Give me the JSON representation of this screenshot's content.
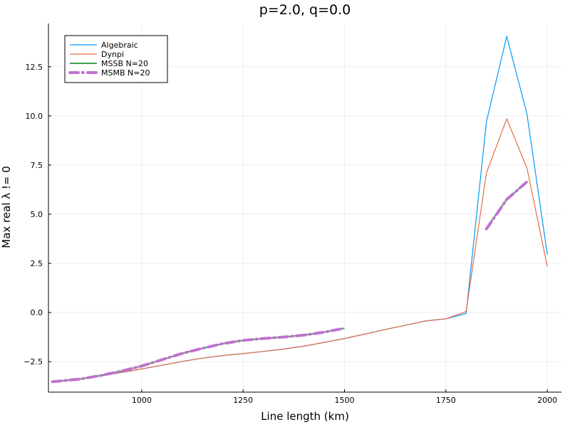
{
  "chart_data": {
    "type": "line",
    "title": "p=2.0, q=0.0",
    "xlabel": "Line length (km)",
    "ylabel": "Max real λ != 0",
    "xlim": [
      770,
      2035
    ],
    "ylim": [
      -4.05,
      14.7
    ],
    "xticks": [
      1000,
      1250,
      1500,
      1750,
      2000
    ],
    "xtick_labels": [
      "1000",
      "1250",
      "1500",
      "1750",
      "2000"
    ],
    "yticks": [
      -2.5,
      0.0,
      2.5,
      5.0,
      7.5,
      10.0,
      12.5
    ],
    "ytick_labels": [
      "−2.5",
      "0.0",
      "2.5",
      "5.0",
      "7.5",
      "10.0",
      "12.5"
    ],
    "grid": true,
    "legend_position": "top-left",
    "series": [
      {
        "name": "Algebraic",
        "color": "#009AFA",
        "style": "solid",
        "width": 1.2,
        "x": [
          780,
          850,
          900,
          950,
          1000,
          1050,
          1100,
          1150,
          1200,
          1250,
          1300,
          1350,
          1400,
          1450,
          1500,
          1550,
          1600,
          1650,
          1700,
          1750,
          1800,
          1850,
          1900,
          1950,
          2000
        ],
        "y": [
          -3.5,
          -3.37,
          -3.22,
          -3.05,
          -2.87,
          -2.68,
          -2.49,
          -2.32,
          -2.19,
          -2.09,
          -1.98,
          -1.86,
          -1.71,
          -1.52,
          -1.32,
          -1.1,
          -0.87,
          -0.65,
          -0.43,
          -0.32,
          -0.05,
          9.7,
          14.05,
          10.1,
          2.95
        ]
      },
      {
        "name": "Dynpi",
        "color": "#E26F46",
        "style": "solid",
        "width": 1.2,
        "x": [
          780,
          850,
          900,
          950,
          1000,
          1050,
          1100,
          1150,
          1200,
          1250,
          1300,
          1350,
          1400,
          1450,
          1500,
          1550,
          1600,
          1650,
          1700,
          1750,
          1800,
          1850,
          1900,
          1950,
          2000
        ],
        "y": [
          -3.5,
          -3.37,
          -3.22,
          -3.05,
          -2.87,
          -2.68,
          -2.49,
          -2.32,
          -2.19,
          -2.09,
          -1.98,
          -1.86,
          -1.71,
          -1.52,
          -1.32,
          -1.1,
          -0.87,
          -0.65,
          -0.43,
          -0.32,
          0.05,
          7.1,
          9.85,
          7.35,
          2.35
        ]
      },
      {
        "name": "MSSB N=20",
        "color": "#3DA44D",
        "style": "solid",
        "width": 2.0,
        "segments": [
          {
            "x": [
              780,
              850,
              900,
              950,
              1000,
              1050,
              1100,
              1150,
              1200,
              1250,
              1300,
              1350,
              1400,
              1450,
              1500
            ],
            "y": [
              -3.52,
              -3.38,
              -3.2,
              -2.98,
              -2.72,
              -2.4,
              -2.08,
              -1.82,
              -1.58,
              -1.42,
              -1.32,
              -1.25,
              -1.15,
              -1.0,
              -0.8
            ]
          },
          {
            "x": [
              1850,
              1900,
              1950
            ],
            "y": [
              4.3,
              5.75,
              6.65
            ]
          }
        ]
      },
      {
        "name": "MSMB N=20",
        "color": "#C271D2",
        "style": "dashed",
        "width": 4.0,
        "segments": [
          {
            "x": [
              780,
              850,
              900,
              950,
              1000,
              1050,
              1100,
              1150,
              1200,
              1250,
              1300,
              1350,
              1400,
              1450,
              1500
            ],
            "y": [
              -3.52,
              -3.38,
              -3.2,
              -2.98,
              -2.72,
              -2.4,
              -2.08,
              -1.82,
              -1.58,
              -1.42,
              -1.32,
              -1.25,
              -1.15,
              -1.0,
              -0.8
            ]
          },
          {
            "x": [
              1850,
              1900,
              1950
            ],
            "y": [
              4.25,
              5.75,
              6.65
            ]
          }
        ]
      }
    ]
  }
}
